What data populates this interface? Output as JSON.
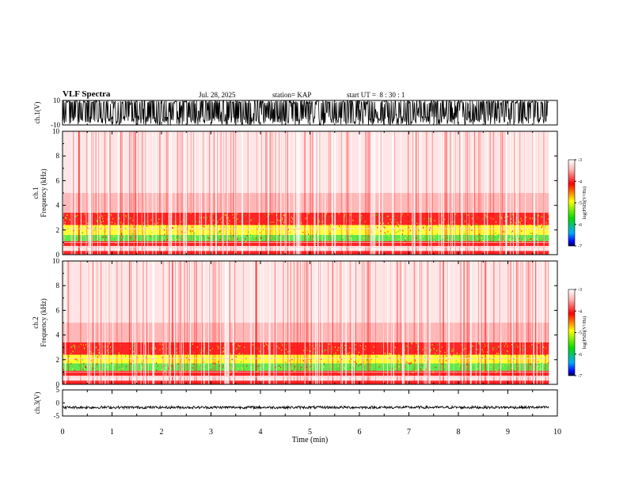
{
  "header": {
    "title": "VLF Spectra",
    "date": "Jul. 28, 2025",
    "station": "station= KAP",
    "start": "start UT =  8 : 30 : 1"
  },
  "colors": {
    "axis": "#000000",
    "spectrogram_base": "#ffffff",
    "red": "#ff0000",
    "yellow": "#ffff00",
    "green": "#00cc00",
    "blue": "#0000ff"
  },
  "chart_data": [
    {
      "type": "line",
      "name": "ch1-waveform",
      "ylabel": "ch.1(V)",
      "ylim": [
        -10,
        10
      ],
      "y_ticks": [
        "10",
        "-10"
      ],
      "xlim": [
        0,
        10
      ],
      "data_end_min": 9.83,
      "note": "saturated noise waveform spanning full range"
    },
    {
      "type": "heatmap",
      "name": "ch1-spectrogram",
      "ylabel_top": "ch.1",
      "ylabel": "Frequency (kHz)",
      "ylim": [
        0,
        10
      ],
      "y_ticks": [
        "0",
        "2",
        "4",
        "6",
        "8",
        "10"
      ],
      "xlim": [
        0,
        10
      ],
      "data_end_min": 9.83,
      "colorbar": {
        "label": "log(PSD)(V²/Hz)",
        "range": [
          -7,
          -3
        ],
        "ticks": [
          "-3",
          "-4",
          "-5",
          "-6",
          "-7"
        ]
      },
      "bands_khz": [
        {
          "from": 0.0,
          "to": 0.3,
          "level": "red"
        },
        {
          "from": 0.3,
          "to": 0.7,
          "level": "light"
        },
        {
          "from": 0.7,
          "to": 1.1,
          "level": "red"
        },
        {
          "from": 1.1,
          "to": 1.6,
          "level": "green"
        },
        {
          "from": 1.6,
          "to": 2.4,
          "level": "yellow"
        },
        {
          "from": 2.4,
          "to": 3.4,
          "level": "red"
        },
        {
          "from": 3.4,
          "to": 5.0,
          "level": "mid"
        },
        {
          "from": 5.0,
          "to": 10.0,
          "level": "light"
        }
      ]
    },
    {
      "type": "heatmap",
      "name": "ch2-spectrogram",
      "ylabel_top": "ch.2",
      "ylabel": "Frequency (kHz)",
      "ylim": [
        0,
        10
      ],
      "y_ticks": [
        "0",
        "2",
        "4",
        "6",
        "8",
        "10"
      ],
      "xlim": [
        0,
        10
      ],
      "data_end_min": 9.83,
      "colorbar": {
        "label": "log(PSD)(V²/Hz)",
        "range": [
          -7,
          -3
        ],
        "ticks": [
          "-3",
          "-4",
          "-5",
          "-6",
          "-7"
        ]
      },
      "bands_khz": [
        {
          "from": 0.0,
          "to": 0.3,
          "level": "red"
        },
        {
          "from": 0.3,
          "to": 0.7,
          "level": "light"
        },
        {
          "from": 0.7,
          "to": 1.1,
          "level": "red"
        },
        {
          "from": 1.1,
          "to": 1.7,
          "level": "green"
        },
        {
          "from": 1.7,
          "to": 2.4,
          "level": "yellow"
        },
        {
          "from": 2.4,
          "to": 3.4,
          "level": "red"
        },
        {
          "from": 3.4,
          "to": 5.0,
          "level": "mid"
        },
        {
          "from": 5.0,
          "to": 10.0,
          "level": "light"
        }
      ]
    },
    {
      "type": "line",
      "name": "ch3-waveform",
      "ylabel": "ch.3(V)",
      "ylim": [
        -5,
        5
      ],
      "y_ticks": [
        "5",
        "0",
        "-5"
      ],
      "mean_value": -1.7,
      "noise_amplitude": 0.5,
      "xlim": [
        0,
        10
      ],
      "data_end_min": 9.83,
      "xlabel": "Time (min)",
      "x_ticks": [
        "0",
        "1",
        "2",
        "3",
        "4",
        "5",
        "6",
        "7",
        "8",
        "9",
        "10"
      ]
    }
  ]
}
